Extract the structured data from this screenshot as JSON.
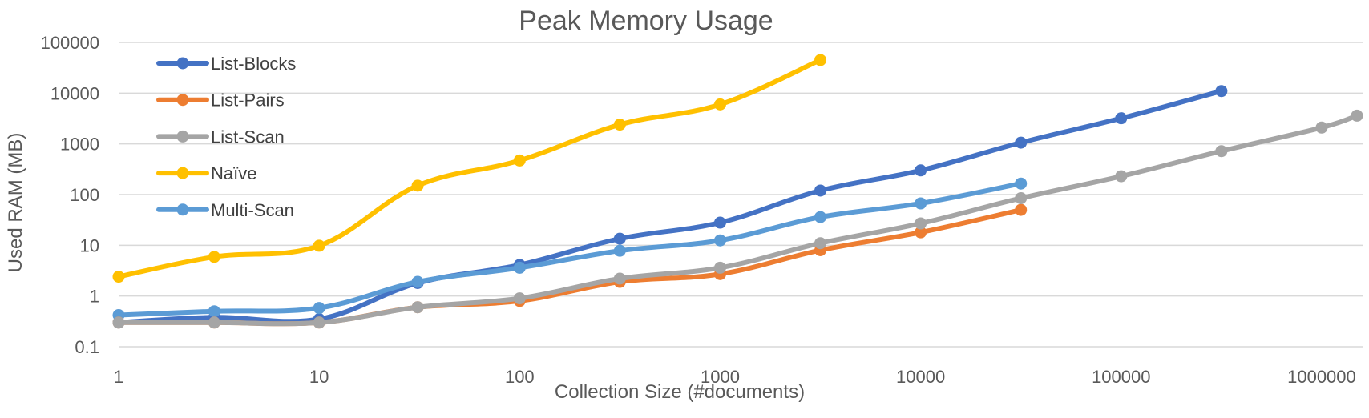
{
  "chart_data": {
    "type": "line",
    "title": "Peak Memory Usage",
    "xlabel": "Collection Size (#documents)",
    "ylabel": "Used RAM (MB)",
    "x_scale": "log",
    "y_scale": "log",
    "xlim": [
      1,
      1600000
    ],
    "ylim": [
      0.1,
      100000
    ],
    "x_ticks": [
      "1",
      "10",
      "100",
      "1000",
      "10000",
      "100000",
      "1000000"
    ],
    "y_ticks": [
      "0.1",
      "1",
      "10",
      "100",
      "1000",
      "10000",
      "100000"
    ],
    "grid": "horizontal",
    "legend_position": "top-left",
    "series": [
      {
        "name": "List-Blocks",
        "color": "#4472C4",
        "x": [
          1,
          3,
          10,
          31,
          100,
          316,
          1000,
          3162,
          10000,
          31623,
          100000,
          316228
        ],
        "values": [
          0.3,
          0.38,
          0.35,
          1.8,
          4.1,
          13.5,
          28,
          120,
          300,
          1060,
          3200,
          11000
        ]
      },
      {
        "name": "List-Pairs",
        "color": "#ED7D31",
        "x": [
          1,
          3,
          10,
          31,
          100,
          316,
          1000,
          3162,
          10000,
          31623
        ],
        "values": [
          0.3,
          0.3,
          0.3,
          0.6,
          0.8,
          1.9,
          2.7,
          8,
          18,
          50
        ]
      },
      {
        "name": "List-Scan",
        "color": "#A5A5A5",
        "x": [
          1,
          3,
          10,
          31,
          100,
          316,
          1000,
          3162,
          10000,
          31623,
          100000,
          316228,
          1000000,
          1500000
        ],
        "values": [
          0.3,
          0.3,
          0.3,
          0.6,
          0.9,
          2.2,
          3.6,
          11,
          27,
          85,
          230,
          720,
          2100,
          3600
        ]
      },
      {
        "name": "Naïve",
        "color": "#FFC000",
        "x": [
          1,
          3,
          10,
          31,
          100,
          316,
          1000,
          3162
        ],
        "values": [
          2.4,
          5.9,
          9.8,
          150,
          470,
          2400,
          6000,
          45000
        ]
      },
      {
        "name": "Multi-Scan",
        "color": "#5B9BD5",
        "x": [
          1,
          3,
          10,
          31,
          100,
          316,
          1000,
          3162,
          10000,
          31623
        ],
        "values": [
          0.42,
          0.5,
          0.58,
          1.9,
          3.6,
          7.8,
          12.5,
          36,
          67,
          165
        ]
      }
    ]
  }
}
